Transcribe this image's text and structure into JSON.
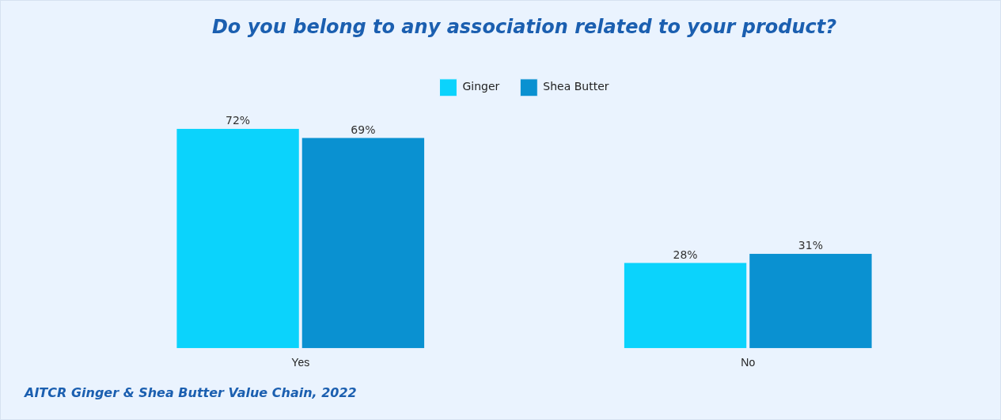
{
  "chart_data": {
    "type": "bar",
    "title": "Do you belong to any association related to your product?",
    "categories": [
      "Yes",
      "No"
    ],
    "series": [
      {
        "name": "Ginger",
        "color": "#0bd3fc",
        "values": [
          72,
          28
        ],
        "value_labels": [
          "72%",
          "28%"
        ]
      },
      {
        "name": "Shea Butter",
        "color": "#0a91d1",
        "values": [
          69,
          31
        ],
        "value_labels": [
          "69%",
          "31%"
        ]
      }
    ],
    "legend": "top",
    "tick_labels": "x",
    "annotations": [
      "AITCR Ginger & Shea Butter Value Chain, 2022"
    ]
  }
}
